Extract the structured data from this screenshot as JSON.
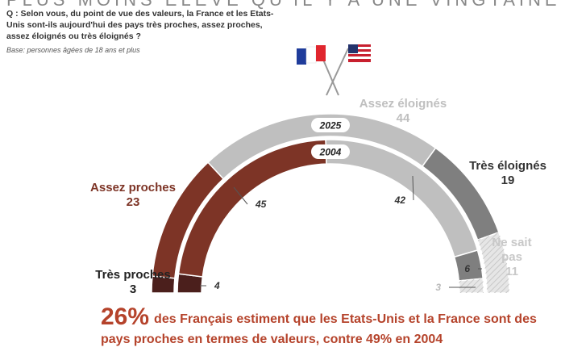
{
  "chart_data": {
    "type": "semi-donut",
    "title": "PLUS MOINS ÉLEVÉ QU'IL Y A UNE VINGTAINE",
    "question": "Q : Selon vous, du point de vue des valeurs, la France et les Etats-Unis sont-ils aujourd'hui des pays très proches, assez proches, assez éloignés ou très éloignés ?",
    "base": "Base: personnes âgées de 18 ans et plus",
    "categories": [
      "Très proches",
      "Assez proches",
      "Assez éloignés",
      "Très éloignés",
      "Ne sait pas"
    ],
    "colors": [
      "#4b1f1c",
      "#7d3426",
      "#bfbfbf",
      "#7f7f7f",
      "#e6e6e6"
    ],
    "series": [
      {
        "name": "2025",
        "values": [
          3,
          23,
          44,
          19,
          11
        ]
      },
      {
        "name": "2004",
        "values": [
          4,
          45,
          42,
          6,
          3
        ]
      }
    ],
    "highlight": "26%",
    "annotation": "des Français estiment que les Etats-Unis et la France sont des pays proches en termes de valeurs, contre 49% en 2004"
  }
}
